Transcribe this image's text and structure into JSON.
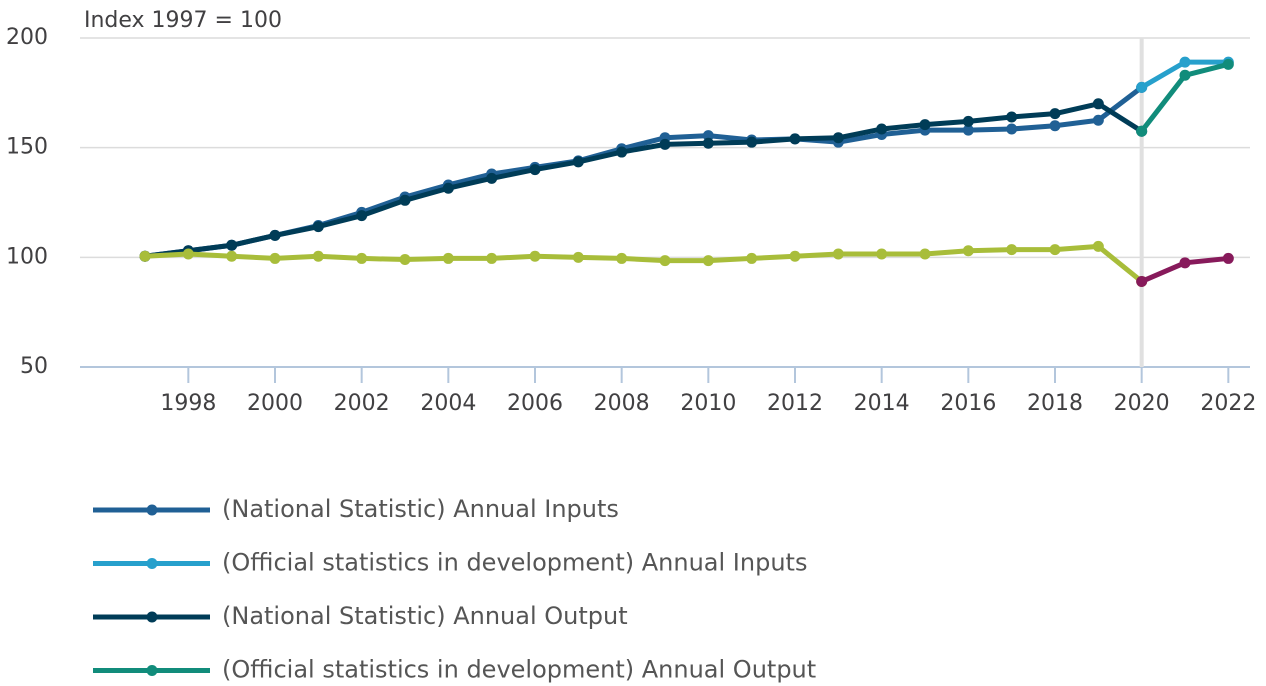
{
  "chart_data": {
    "type": "line",
    "y_axis_label": "Index 1997 = 100",
    "x": [
      1997,
      1998,
      1999,
      2000,
      2001,
      2002,
      2003,
      2004,
      2005,
      2006,
      2007,
      2008,
      2009,
      2010,
      2011,
      2012,
      2013,
      2014,
      2015,
      2016,
      2017,
      2018,
      2019,
      2020,
      2021,
      2022
    ],
    "xlim": [
      1995.5,
      2022.5
    ],
    "xticks": [
      1998,
      2000,
      2002,
      2004,
      2006,
      2008,
      2010,
      2012,
      2014,
      2016,
      2018,
      2020,
      2022
    ],
    "ylim": [
      50,
      200
    ],
    "yticks": [
      50,
      100,
      150,
      200
    ],
    "grid": true,
    "reference_line_x": 2020,
    "series": [
      {
        "name": "(National Statistic) Annual Inputs",
        "color": "#206095",
        "values": [
          100.5,
          103,
          105.5,
          110,
          114.5,
          120.5,
          127.5,
          133,
          138,
          141,
          144,
          149.5,
          154.5,
          155.5,
          153.5,
          154,
          152.5,
          156,
          158,
          158,
          158.5,
          160,
          162.5,
          177.5,
          null,
          null
        ]
      },
      {
        "name": "(Official statistics in development) Annual Inputs",
        "color": "#27a0cc",
        "values": [
          null,
          null,
          null,
          null,
          null,
          null,
          null,
          null,
          null,
          null,
          null,
          null,
          null,
          null,
          null,
          null,
          null,
          null,
          null,
          null,
          null,
          null,
          null,
          177.5,
          189,
          189
        ]
      },
      {
        "name": "(National Statistic) Annual Output",
        "color": "#003c57",
        "values": [
          100.5,
          103,
          105.5,
          110,
          114,
          119,
          126,
          131.5,
          136,
          140,
          143.5,
          148,
          151.5,
          152,
          152.5,
          154,
          154.5,
          158.5,
          160.5,
          162,
          164,
          165.5,
          170,
          157.5,
          null,
          null
        ]
      },
      {
        "name": "(Official statistics in development) Annual Output",
        "color": "#118c7b",
        "values": [
          null,
          null,
          null,
          null,
          null,
          null,
          null,
          null,
          null,
          null,
          null,
          null,
          null,
          null,
          null,
          null,
          null,
          null,
          null,
          null,
          null,
          null,
          null,
          157.5,
          183,
          188
        ]
      },
      {
        "color": "#a8bd3a",
        "values": [
          100.5,
          101.5,
          100.5,
          99.5,
          100.5,
          99.5,
          99,
          99.5,
          99.5,
          100.5,
          100,
          99.5,
          98.5,
          98.5,
          99.5,
          100.5,
          101.5,
          101.5,
          101.5,
          103,
          103.5,
          103.5,
          105,
          89,
          null,
          null
        ]
      },
      {
        "color": "#871a5b",
        "values": [
          null,
          null,
          null,
          null,
          null,
          null,
          null,
          null,
          null,
          null,
          null,
          null,
          null,
          null,
          null,
          null,
          null,
          null,
          null,
          null,
          null,
          null,
          null,
          89,
          97.5,
          99.5
        ]
      }
    ]
  }
}
